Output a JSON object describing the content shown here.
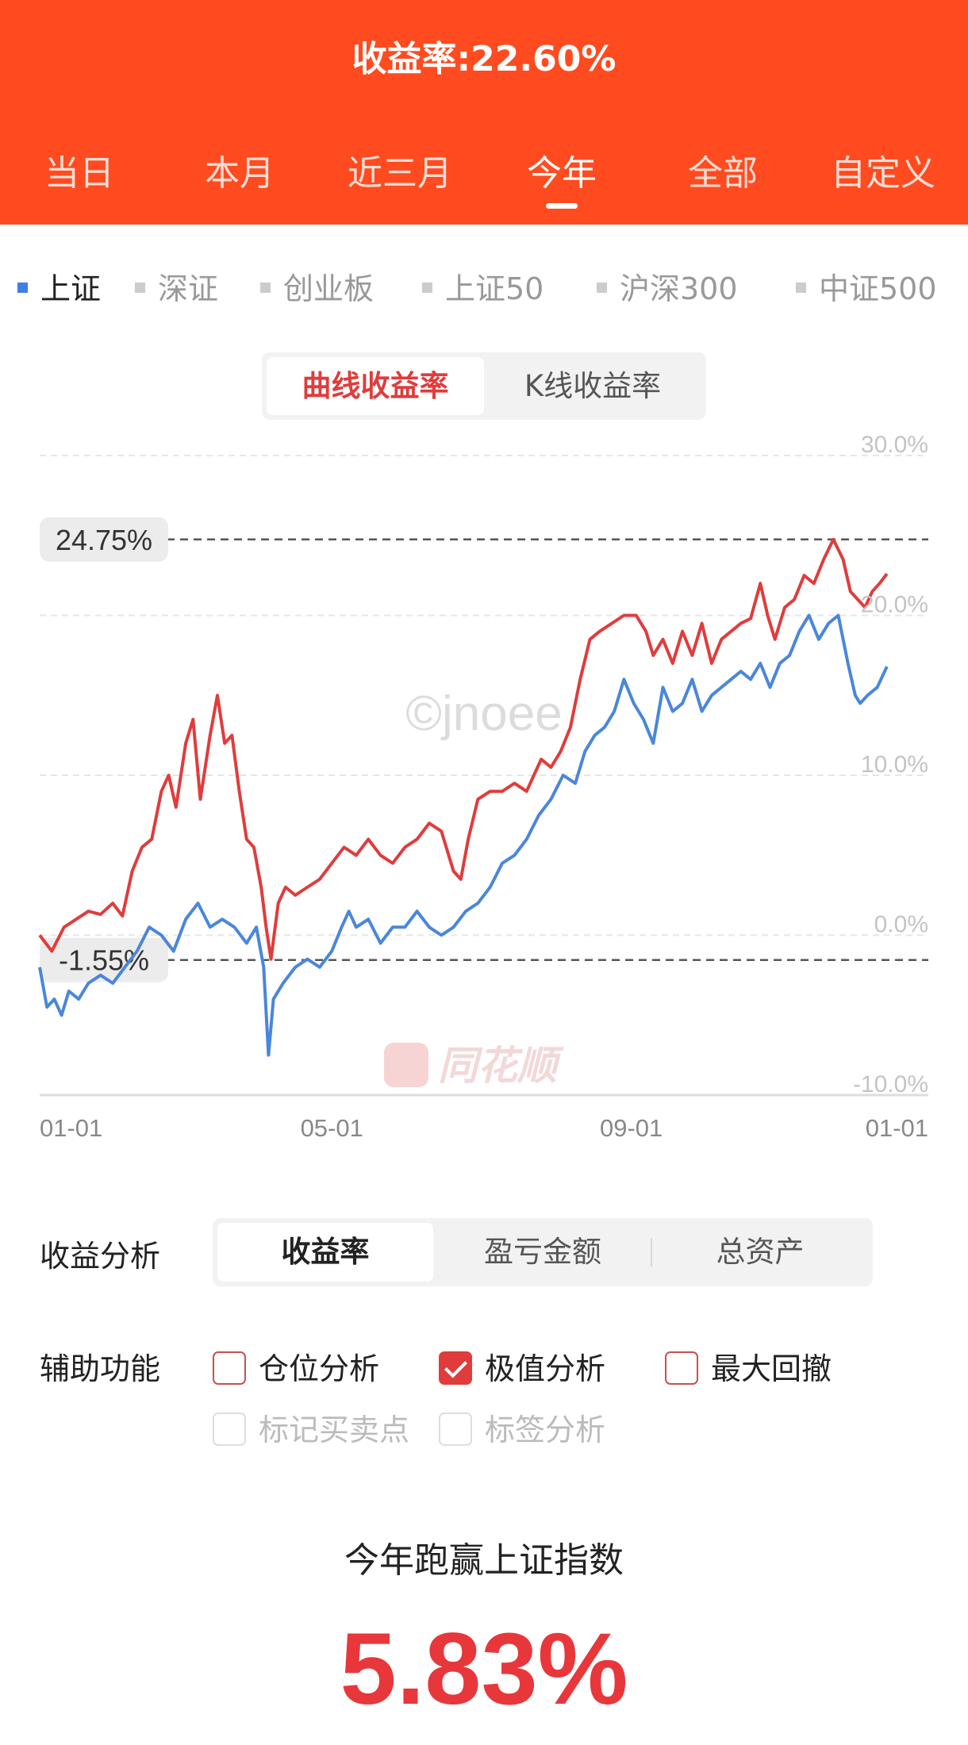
{
  "header": {
    "title": "收益率:22.60%",
    "tabs": [
      "当日",
      "本月",
      "近三月",
      "今年",
      "全部",
      "自定义"
    ],
    "active_tab": "今年"
  },
  "index_tabs": {
    "items": [
      "上证",
      "深证",
      "创业板",
      "上证50",
      "沪深300",
      "中证500"
    ],
    "active": "上证"
  },
  "mode_switch": {
    "active": "曲线收益率",
    "inactive": "K线收益率"
  },
  "watermarks": {
    "text": "©jnoee",
    "brand": "同花顺"
  },
  "chart_data": {
    "type": "line",
    "x_tick_labels": [
      "01-01",
      "05-01",
      "09-01",
      "01-01"
    ],
    "y_tick_labels": [
      "30.0%",
      "20.0%",
      "10.0%",
      "0.0%",
      "-10.0%"
    ],
    "ylim": [
      -10,
      30
    ],
    "grid": true,
    "reference_lines": [
      {
        "label": "24.75%",
        "value": 24.75
      },
      {
        "label": "-1.55%",
        "value": -1.55
      }
    ],
    "series": [
      {
        "color": "#E03C3C",
        "points": [
          [
            0,
            0.0
          ],
          [
            5,
            -1.0
          ],
          [
            10,
            0.5
          ],
          [
            15,
            1.0
          ],
          [
            20,
            1.5
          ],
          [
            25,
            1.3
          ],
          [
            30,
            2.0
          ],
          [
            34,
            1.2
          ],
          [
            38,
            4.0
          ],
          [
            42,
            5.5
          ],
          [
            46,
            6.0
          ],
          [
            50,
            9.0
          ],
          [
            53,
            10.0
          ],
          [
            56,
            8.0
          ],
          [
            60,
            12.0
          ],
          [
            63,
            13.5
          ],
          [
            66,
            8.5
          ],
          [
            70,
            12.5
          ],
          [
            73,
            15.0
          ],
          [
            76,
            12.0
          ],
          [
            79,
            12.5
          ],
          [
            82,
            9.0
          ],
          [
            85,
            6.0
          ],
          [
            88,
            5.5
          ],
          [
            91,
            3.0
          ],
          [
            93,
            0.5
          ],
          [
            95,
            -1.5
          ],
          [
            98,
            2.0
          ],
          [
            101,
            3.0
          ],
          [
            105,
            2.5
          ],
          [
            110,
            3.0
          ],
          [
            115,
            3.5
          ],
          [
            120,
            4.5
          ],
          [
            125,
            5.5
          ],
          [
            130,
            5.0
          ],
          [
            135,
            6.0
          ],
          [
            140,
            5.0
          ],
          [
            145,
            4.5
          ],
          [
            150,
            5.5
          ],
          [
            155,
            6.0
          ],
          [
            160,
            7.0
          ],
          [
            165,
            6.5
          ],
          [
            170,
            4.0
          ],
          [
            173,
            3.5
          ],
          [
            176,
            6.0
          ],
          [
            180,
            8.5
          ],
          [
            185,
            9.0
          ],
          [
            190,
            9.0
          ],
          [
            195,
            9.5
          ],
          [
            200,
            9.0
          ],
          [
            203,
            10.0
          ],
          [
            206,
            11.0
          ],
          [
            210,
            10.5
          ],
          [
            214,
            11.5
          ],
          [
            218,
            13.0
          ],
          [
            222,
            16.0
          ],
          [
            226,
            18.5
          ],
          [
            230,
            19.0
          ],
          [
            235,
            19.5
          ],
          [
            240,
            20.0
          ],
          [
            245,
            20.0
          ],
          [
            249,
            19.0
          ],
          [
            252,
            17.5
          ],
          [
            256,
            18.5
          ],
          [
            260,
            17.0
          ],
          [
            264,
            19.0
          ],
          [
            268,
            17.5
          ],
          [
            272,
            19.5
          ],
          [
            276,
            17.0
          ],
          [
            280,
            18.5
          ],
          [
            284,
            19.0
          ],
          [
            288,
            19.5
          ],
          [
            292,
            19.8
          ],
          [
            296,
            22.0
          ],
          [
            299,
            20.0
          ],
          [
            302,
            18.5
          ],
          [
            306,
            20.5
          ],
          [
            310,
            21.0
          ],
          [
            314,
            22.5
          ],
          [
            318,
            22.0
          ],
          [
            322,
            23.5
          ],
          [
            326,
            24.75
          ],
          [
            330,
            23.5
          ],
          [
            333,
            21.5
          ],
          [
            336,
            21.0
          ],
          [
            339,
            20.5
          ],
          [
            342,
            21.5
          ],
          [
            345,
            22.0
          ],
          [
            348,
            22.6
          ]
        ]
      },
      {
        "color": "#4A86DC",
        "points": [
          [
            0,
            -2.0
          ],
          [
            3,
            -4.5
          ],
          [
            6,
            -4.0
          ],
          [
            9,
            -5.0
          ],
          [
            12,
            -3.5
          ],
          [
            16,
            -4.0
          ],
          [
            20,
            -3.0
          ],
          [
            25,
            -2.5
          ],
          [
            30,
            -3.0
          ],
          [
            35,
            -2.0
          ],
          [
            40,
            -1.0
          ],
          [
            45,
            0.5
          ],
          [
            50,
            0.0
          ],
          [
            55,
            -1.0
          ],
          [
            60,
            1.0
          ],
          [
            65,
            2.0
          ],
          [
            70,
            0.5
          ],
          [
            75,
            1.0
          ],
          [
            80,
            0.5
          ],
          [
            85,
            -0.5
          ],
          [
            89,
            0.5
          ],
          [
            92,
            -2.0
          ],
          [
            94,
            -7.5
          ],
          [
            96,
            -4.0
          ],
          [
            100,
            -3.0
          ],
          [
            105,
            -2.0
          ],
          [
            110,
            -1.5
          ],
          [
            115,
            -2.0
          ],
          [
            120,
            -1.0
          ],
          [
            124,
            0.5
          ],
          [
            127,
            1.5
          ],
          [
            130,
            0.5
          ],
          [
            135,
            1.0
          ],
          [
            140,
            -0.5
          ],
          [
            145,
            0.5
          ],
          [
            150,
            0.5
          ],
          [
            155,
            1.5
          ],
          [
            160,
            0.5
          ],
          [
            165,
            0.0
          ],
          [
            170,
            0.5
          ],
          [
            175,
            1.5
          ],
          [
            180,
            2.0
          ],
          [
            185,
            3.0
          ],
          [
            190,
            4.5
          ],
          [
            195,
            5.0
          ],
          [
            200,
            6.0
          ],
          [
            205,
            7.5
          ],
          [
            210,
            8.5
          ],
          [
            215,
            10.0
          ],
          [
            220,
            9.5
          ],
          [
            224,
            11.5
          ],
          [
            228,
            12.5
          ],
          [
            232,
            13.0
          ],
          [
            236,
            14.0
          ],
          [
            240,
            16.0
          ],
          [
            244,
            14.5
          ],
          [
            248,
            13.5
          ],
          [
            252,
            12.0
          ],
          [
            256,
            15.5
          ],
          [
            260,
            14.0
          ],
          [
            264,
            14.5
          ],
          [
            268,
            16.0
          ],
          [
            272,
            14.0
          ],
          [
            276,
            15.0
          ],
          [
            280,
            15.5
          ],
          [
            284,
            16.0
          ],
          [
            288,
            16.5
          ],
          [
            292,
            16.0
          ],
          [
            296,
            17.0
          ],
          [
            300,
            15.5
          ],
          [
            304,
            17.0
          ],
          [
            308,
            17.5
          ],
          [
            312,
            19.0
          ],
          [
            316,
            20.0
          ],
          [
            320,
            18.5
          ],
          [
            324,
            19.5
          ],
          [
            328,
            20.0
          ],
          [
            332,
            17.0
          ],
          [
            335,
            15.0
          ],
          [
            337,
            14.5
          ],
          [
            340,
            15.0
          ],
          [
            344,
            15.5
          ],
          [
            348,
            16.8
          ]
        ]
      }
    ]
  },
  "analysis": {
    "label": "收益分析",
    "options": [
      "收益率",
      "盈亏金额",
      "总资产"
    ],
    "active": "收益率"
  },
  "aux": {
    "label": "辅助功能",
    "options": [
      {
        "label": "仓位分析",
        "checked": false,
        "enabled": true
      },
      {
        "label": "极值分析",
        "checked": true,
        "enabled": true
      },
      {
        "label": "最大回撤",
        "checked": false,
        "enabled": true
      },
      {
        "label": "标记买卖点",
        "checked": false,
        "enabled": false
      },
      {
        "label": "标签分析",
        "checked": false,
        "enabled": false
      }
    ]
  },
  "summary": {
    "title": "今年跑赢上证指数",
    "value": "5.83%"
  }
}
